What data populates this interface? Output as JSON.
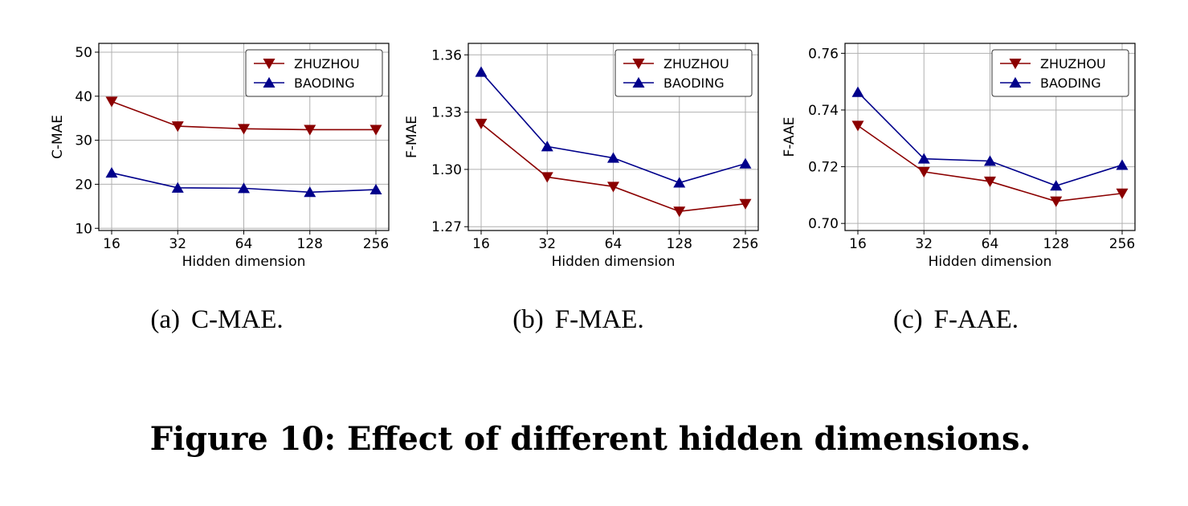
{
  "figure_caption": "Figure 10: Effect of different hidden dimensions.",
  "colors": {
    "zhuzhou": "#8b0000",
    "baoding": "#00008b",
    "grid": "#b0b0b0"
  },
  "chart_data": [
    {
      "type": "line",
      "caption_letter": "(a)",
      "caption_text": "C-MAE.",
      "xlabel": "Hidden dimension",
      "ylabel": "C-MAE",
      "categories": [
        "16",
        "32",
        "64",
        "128",
        "256"
      ],
      "ylim": [
        9.5,
        52
      ],
      "yticks": [
        10,
        20,
        30,
        40,
        50
      ],
      "ytick_labels": [
        "10",
        "20",
        "30",
        "40",
        "50"
      ],
      "legend": "top-right",
      "grid": true,
      "series": [
        {
          "name": "ZHUZHOU",
          "marker": "triangle-down",
          "values": [
            38.8,
            33.2,
            32.6,
            32.4,
            32.4
          ]
        },
        {
          "name": "BAODING",
          "marker": "triangle-up",
          "values": [
            22.6,
            19.2,
            19.1,
            18.2,
            18.8
          ]
        }
      ]
    },
    {
      "type": "line",
      "caption_letter": "(b)",
      "caption_text": "F-MAE.",
      "xlabel": "Hidden dimension",
      "ylabel": "F-MAE",
      "categories": [
        "16",
        "32",
        "64",
        "128",
        "256"
      ],
      "ylim": [
        1.268,
        1.366
      ],
      "yticks": [
        1.27,
        1.3,
        1.33,
        1.36
      ],
      "ytick_labels": [
        "1.27",
        "1.30",
        "1.33",
        "1.36"
      ],
      "legend": "top-right",
      "grid": true,
      "series": [
        {
          "name": "ZHUZHOU",
          "marker": "triangle-down",
          "values": [
            1.324,
            1.296,
            1.291,
            1.278,
            1.282
          ]
        },
        {
          "name": "BAODING",
          "marker": "triangle-up",
          "values": [
            1.351,
            1.312,
            1.306,
            1.293,
            1.303
          ]
        }
      ]
    },
    {
      "type": "line",
      "caption_letter": "(c)",
      "caption_text": "F-AAE.",
      "xlabel": "Hidden dimension",
      "ylabel": "F-AAE",
      "categories": [
        "16",
        "32",
        "64",
        "128",
        "256"
      ],
      "ylim": [
        0.6975,
        0.7635
      ],
      "yticks": [
        0.7,
        0.72,
        0.74,
        0.76
      ],
      "ytick_labels": [
        "0.70",
        "0.72",
        "0.74",
        "0.76"
      ],
      "legend": "top-right",
      "grid": true,
      "series": [
        {
          "name": "ZHUZHOU",
          "marker": "triangle-down",
          "values": [
            0.7345,
            0.7182,
            0.7148,
            0.7078,
            0.7106
          ]
        },
        {
          "name": "BAODING",
          "marker": "triangle-up",
          "values": [
            0.7463,
            0.7228,
            0.722,
            0.7133,
            0.7206
          ]
        }
      ]
    }
  ]
}
